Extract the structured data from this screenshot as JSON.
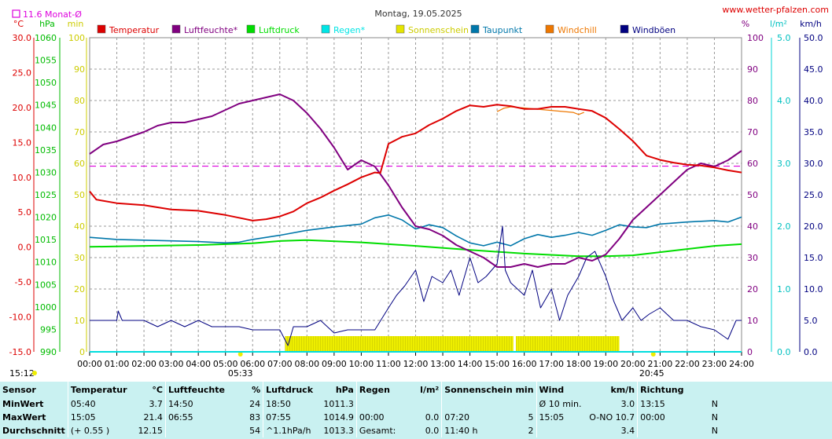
{
  "header": {
    "title": "Montag, 19.05.2025",
    "site": "www.wetter-pfalzen.com",
    "monthly_avg_label": "11.6 Monat-Ø"
  },
  "units": {
    "temp": "°C",
    "pressure": "hPa",
    "sun": "min",
    "humidity": "%",
    "rain": "l/m²",
    "wind": "km/h"
  },
  "legend": [
    {
      "name": "Temperatur",
      "color": "#dd0000"
    },
    {
      "name": "Luftfeuchte*",
      "color": "#800080"
    },
    {
      "name": "Luftdruck",
      "color": "#00dd00"
    },
    {
      "name": "Regen*",
      "color": "#00e5e5"
    },
    {
      "name": "Sonnenschein",
      "color": "#e5e500"
    },
    {
      "name": "Taupunkt",
      "color": "#0077aa"
    },
    {
      "name": "Windchill",
      "color": "#ee7700"
    },
    {
      "name": "Windböen",
      "color": "#000080"
    }
  ],
  "axes": {
    "temp_ticks": [
      "30.0",
      "25.0",
      "20.0",
      "15.0",
      "10.0",
      "5.0",
      "0.0",
      "-5.0",
      "-10.0",
      "-15.0"
    ],
    "pressure_ticks": [
      "1060",
      "1055",
      "1050",
      "1045",
      "1040",
      "1035",
      "1030",
      "1025",
      "1020",
      "1015",
      "1010",
      "1005",
      "1000",
      "995",
      "990"
    ],
    "sun_ticks": [
      "100",
      "90",
      "80",
      "70",
      "60",
      "50",
      "40",
      "30",
      "20",
      "10",
      "0"
    ],
    "humidity_ticks": [
      "100",
      "90",
      "80",
      "70",
      "60",
      "50",
      "40",
      "30",
      "20",
      "10",
      "0"
    ],
    "rain_ticks": [
      "5.0",
      "4.0",
      "3.0",
      "2.0",
      "1.0",
      "0.0"
    ],
    "wind_ticks": [
      "50.0",
      "45.0",
      "40.0",
      "35.0",
      "30.0",
      "25.0",
      "20.0",
      "15.0",
      "10.0",
      "5.0",
      "0.0"
    ],
    "time_ticks": [
      "00:00",
      "01:00",
      "02:00",
      "03:00",
      "04:00",
      "05:00",
      "06:00",
      "07:00",
      "08:00",
      "09:00",
      "10:00",
      "11:00",
      "12:00",
      "13:00",
      "14:00",
      "15:00",
      "16:00",
      "17:00",
      "18:00",
      "19:00",
      "20:00",
      "21:00",
      "22:00",
      "23:00",
      "24:00"
    ]
  },
  "events": {
    "sunrise": "05:33",
    "sunset": "20:45",
    "current_time": "15:12"
  },
  "chart_data": {
    "type": "line",
    "title": "Montag, 19.05.2025",
    "x_unit": "hour",
    "xlim": [
      0,
      24
    ],
    "monthly_avg_temp": 11.6,
    "series": [
      {
        "name": "Temperatur",
        "unit": "°C",
        "color": "#dd0000",
        "x": [
          0,
          0.25,
          1,
          2,
          3,
          4,
          5,
          5.5,
          6,
          6.5,
          7,
          7.5,
          8,
          8.5,
          9,
          9.5,
          10,
          10.5,
          10.7,
          11,
          11.5,
          12,
          12.5,
          13,
          13.5,
          14,
          14.5,
          15,
          15.5,
          16,
          16.5,
          17,
          17.5,
          18,
          18.5,
          19,
          19.5,
          20,
          20.5,
          21,
          21.5,
          22,
          22.5,
          23,
          23.5,
          24
        ],
        "y": [
          8.0,
          6.8,
          6.3,
          6.0,
          5.4,
          5.2,
          4.6,
          4.2,
          3.8,
          4.0,
          4.4,
          5.1,
          6.3,
          7.1,
          8.1,
          9.0,
          10.0,
          10.7,
          10.6,
          14.8,
          15.8,
          16.3,
          17.5,
          18.4,
          19.5,
          20.3,
          20.1,
          20.4,
          20.2,
          19.8,
          19.8,
          20.1,
          20.1,
          19.8,
          19.5,
          18.5,
          16.9,
          15.2,
          13.1,
          12.5,
          12.1,
          11.8,
          11.7,
          11.4,
          11.0,
          10.7
        ]
      },
      {
        "name": "Luftfeuchte*",
        "unit": "%",
        "color": "#800080",
        "x": [
          0,
          0.5,
          1,
          2,
          2.5,
          3,
          3.5,
          4,
          4.5,
          5,
          5.5,
          6,
          6.5,
          7,
          7.5,
          8,
          8.5,
          9,
          9.5,
          10,
          10.5,
          11,
          11.5,
          12,
          12.5,
          13,
          13.5,
          14,
          14.5,
          15,
          15.5,
          16,
          16.5,
          17,
          17.5,
          18,
          18.5,
          19,
          19.5,
          20,
          20.5,
          21,
          21.5,
          22,
          22.5,
          23,
          23.5,
          24
        ],
        "y": [
          63,
          66,
          67,
          70,
          72,
          73,
          73,
          74,
          75,
          77,
          79,
          80,
          81,
          82,
          80,
          76,
          71,
          65,
          58,
          61,
          59,
          53,
          46,
          40,
          39,
          37,
          34,
          32,
          30,
          27,
          27,
          28,
          27,
          28,
          28,
          30,
          29,
          31,
          36,
          42,
          46,
          50,
          54,
          58,
          60,
          59,
          61,
          64
        ]
      },
      {
        "name": "Luftdruck",
        "unit": "hPa",
        "color": "#00dd00",
        "x": [
          0,
          2,
          4,
          6,
          7,
          8,
          10,
          12,
          14,
          16,
          18,
          19,
          20,
          21,
          22,
          23,
          24
        ],
        "y": [
          1013.4,
          1013.6,
          1013.8,
          1014.2,
          1014.7,
          1014.9,
          1014.4,
          1013.6,
          1012.7,
          1011.9,
          1011.3,
          1011.3,
          1011.5,
          1012.2,
          1012.9,
          1013.6,
          1014.0
        ]
      },
      {
        "name": "Taupunkt",
        "unit": "°C",
        "color": "#0077aa",
        "x": [
          0,
          1,
          2,
          3,
          4,
          5,
          5.5,
          6,
          7,
          8,
          9,
          10,
          10.5,
          11,
          11.5,
          12,
          12.5,
          13,
          13.5,
          14,
          14.5,
          15,
          15.5,
          16,
          16.5,
          17,
          17.5,
          18,
          18.5,
          19,
          19.5,
          20,
          20.5,
          21,
          22,
          23,
          23.5,
          24
        ],
        "y": [
          1.4,
          1.1,
          1.0,
          0.9,
          0.8,
          0.6,
          0.7,
          1.1,
          1.7,
          2.4,
          2.9,
          3.3,
          4.2,
          4.6,
          3.9,
          2.6,
          3.2,
          2.8,
          1.6,
          0.6,
          0.2,
          0.7,
          0.2,
          1.2,
          1.8,
          1.4,
          1.7,
          2.1,
          1.7,
          2.4,
          3.2,
          2.9,
          2.8,
          3.3,
          3.6,
          3.8,
          3.6,
          4.3
        ]
      },
      {
        "name": "Windböen",
        "unit": "km/h",
        "color": "#000080",
        "x": [
          0,
          1,
          1.05,
          1.2,
          2,
          2.5,
          3,
          3.5,
          4,
          4.5,
          5,
          5.5,
          6,
          6.5,
          7,
          7.3,
          7.5,
          8,
          8.5,
          9,
          9.5,
          10,
          10.5,
          11,
          11.3,
          11.6,
          12,
          12.3,
          12.6,
          13,
          13.3,
          13.6,
          14,
          14.3,
          14.6,
          15,
          15.2,
          15.3,
          15.5,
          16,
          16.3,
          16.6,
          17,
          17.3,
          17.6,
          18,
          18.3,
          18.6,
          19,
          19.3,
          19.6,
          20,
          20.3,
          20.6,
          21,
          21.5,
          22,
          22.5,
          23,
          23.5,
          23.8,
          24
        ],
        "y": [
          5,
          5,
          6.5,
          5,
          5,
          4,
          5,
          4,
          5,
          4,
          4,
          4,
          3.5,
          3.5,
          3.5,
          1,
          4,
          4,
          5,
          3,
          3.5,
          3.5,
          3.5,
          7,
          9,
          10.5,
          13,
          8,
          12,
          11,
          13,
          9,
          15,
          11,
          12,
          14,
          20,
          13,
          11,
          9,
          13,
          7,
          10,
          5,
          9,
          12,
          15,
          16,
          12,
          8,
          5,
          7,
          5,
          6,
          7,
          5,
          5,
          4,
          3.5,
          2,
          5,
          5
        ]
      },
      {
        "name": "Windchill",
        "unit": "°C",
        "color": "#ee7700",
        "x": [
          15,
          15.25,
          15.5,
          17.8,
          18,
          18.2
        ],
        "y": [
          19.4,
          19.9,
          20.1,
          19.3,
          19.0,
          19.3
        ]
      },
      {
        "name": "Sonnenschein",
        "unit": "min",
        "color": "#e5e500",
        "x": [
          7.2,
          15.45,
          15.6,
          15.7,
          16.4,
          19.5
        ],
        "y": [
          5,
          5,
          0,
          5,
          5,
          0
        ]
      },
      {
        "name": "Regen*",
        "unit": "l/m²",
        "color": "#00e5e5",
        "x": [
          0,
          24
        ],
        "y": [
          0,
          0
        ]
      }
    ]
  },
  "stats": {
    "headers": {
      "sensor": "Sensor",
      "temp": "Temperatur",
      "temp_unit": "°C",
      "hum": "Luftfeuchte",
      "hum_unit": "%",
      "press": "Luftdruck",
      "press_unit": "hPa",
      "rain": "Regen",
      "rain_unit": "l/m²",
      "sun": "Sonnenschein min",
      "wind": "Wind",
      "wind_unit": "km/h",
      "dir": "Richtung"
    },
    "rows": [
      {
        "label": "MinWert",
        "temp_time": "05:40",
        "temp_val": "3.7",
        "hum_time": "14:50",
        "hum_val": "24",
        "press_time": "18:50",
        "press_val": "1011.3",
        "rain_time": "",
        "rain_val": "",
        "sun_time": "",
        "sun_val": "",
        "wind_time": "Ø 10 min.",
        "wind_val": "3.0",
        "dir_time": "13:15",
        "dir_val": "N"
      },
      {
        "label": "MaxWert",
        "temp_time": "15:05",
        "temp_val": "21.4",
        "hum_time": "06:55",
        "hum_val": "83",
        "press_time": "07:55",
        "press_val": "1014.9",
        "rain_time": "00:00",
        "rain_val": "0.0",
        "sun_time": "07:20",
        "sun_val": "5",
        "wind_time": "15:05",
        "wind_val": "O-NO 10.7",
        "dir_time": "00:00",
        "dir_val": "N"
      },
      {
        "label": "Durchschnitt",
        "temp_time": "(+ 0.55 )",
        "temp_val": "12.15",
        "hum_time": "",
        "hum_val": "54",
        "press_time": "^1.1hPa/h",
        "press_val": "1013.3",
        "rain_time": "Gesamt:",
        "rain_val": "0.0",
        "sun_time": "11:40 h",
        "sun_val": "2",
        "wind_time": "",
        "wind_val": "3.4",
        "dir_time": "",
        "dir_val": "N"
      }
    ]
  }
}
